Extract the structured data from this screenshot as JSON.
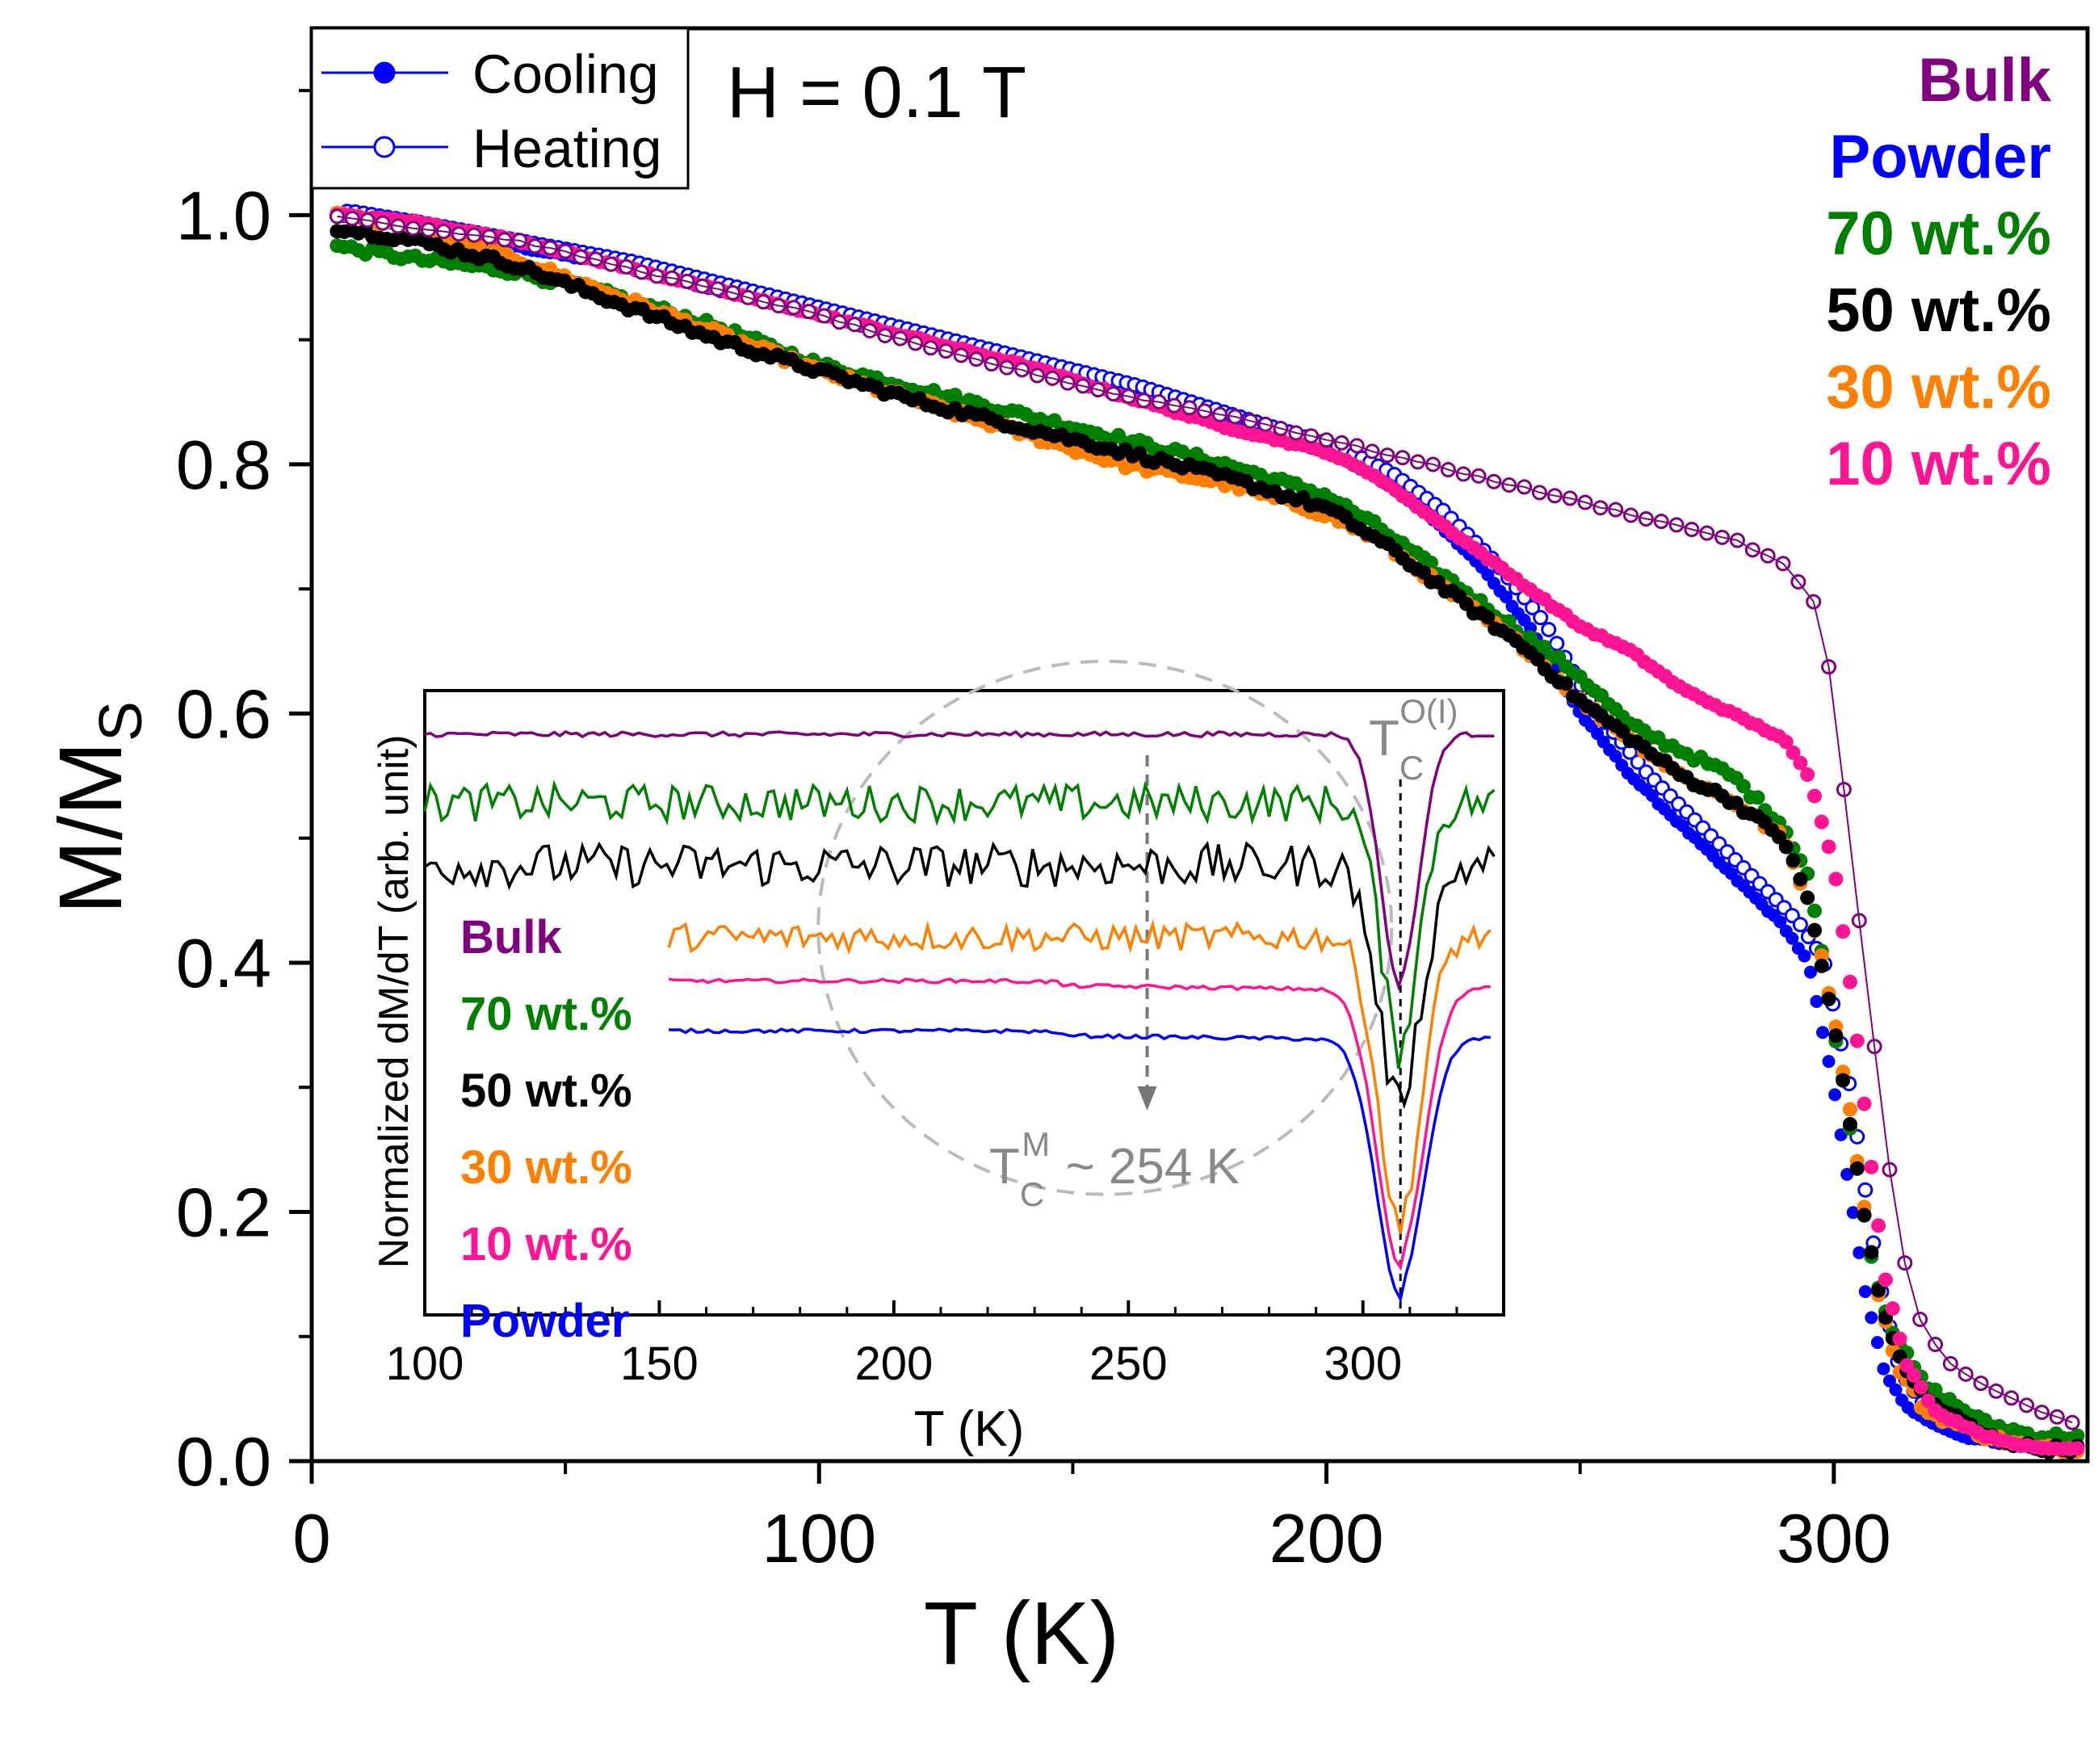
{
  "chart_data": [
    {
      "id": "main",
      "type": "scatter",
      "title": "",
      "annotation": "H = 0.1 T",
      "xlabel": "T (K)",
      "ylabel_main": "M/M",
      "ylabel_sub": "S",
      "xlim": [
        0,
        350
      ],
      "ylim": [
        0.0,
        1.15
      ],
      "xticks": [
        0,
        100,
        200,
        300
      ],
      "xtick_labels": [
        "0",
        "100",
        "200",
        "300"
      ],
      "yticks": [
        0.0,
        0.2,
        0.4,
        0.6,
        0.8,
        1.0
      ],
      "ytick_labels": [
        "0.0",
        "0.2",
        "0.4",
        "0.6",
        "0.8",
        "1.0"
      ],
      "grid": false,
      "legend": {
        "placement": "top-left",
        "entries": [
          {
            "label": "Cooling",
            "marker": "filled-circle",
            "color": "#0000ff"
          },
          {
            "label": "Heating",
            "marker": "open-circle",
            "color": "#0000ff"
          }
        ]
      },
      "series_labels_placement": "top-right",
      "series": [
        {
          "name": "Bulk",
          "color": "#800080",
          "points": [
            [
              5,
              1.0
            ],
            [
              20,
              0.99
            ],
            [
              40,
              0.98
            ],
            [
              60,
              0.96
            ],
            [
              80,
              0.94
            ],
            [
              100,
              0.92
            ],
            [
              120,
              0.895
            ],
            [
              140,
              0.875
            ],
            [
              160,
              0.855
            ],
            [
              180,
              0.84
            ],
            [
              200,
              0.82
            ],
            [
              210,
              0.81
            ],
            [
              220,
              0.8
            ],
            [
              230,
              0.79
            ],
            [
              240,
              0.78
            ],
            [
              250,
              0.77
            ],
            [
              260,
              0.76
            ],
            [
              270,
              0.75
            ],
            [
              280,
              0.74
            ],
            [
              290,
              0.72
            ],
            [
              296,
              0.69
            ],
            [
              300,
              0.62
            ],
            [
              303,
              0.5
            ],
            [
              306,
              0.4
            ],
            [
              309,
              0.3
            ],
            [
              312,
              0.2
            ],
            [
              316,
              0.12
            ],
            [
              322,
              0.08
            ],
            [
              330,
              0.06
            ],
            [
              340,
              0.04
            ],
            [
              348,
              0.03
            ]
          ]
        },
        {
          "name": "Powder",
          "color": "#0000ff",
          "points": [
            [
              5,
              1.0
            ],
            [
              20,
              0.99
            ],
            [
              40,
              0.975
            ],
            [
              60,
              0.96
            ],
            [
              80,
              0.94
            ],
            [
              100,
              0.92
            ],
            [
              120,
              0.9
            ],
            [
              140,
              0.88
            ],
            [
              160,
              0.86
            ],
            [
              180,
              0.835
            ],
            [
              200,
              0.81
            ],
            [
              210,
              0.79
            ],
            [
              220,
              0.76
            ],
            [
              230,
              0.72
            ],
            [
              240,
              0.67
            ],
            [
              250,
              0.6
            ],
            [
              260,
              0.55
            ],
            [
              270,
              0.51
            ],
            [
              280,
              0.47
            ],
            [
              290,
              0.43
            ],
            [
              295,
              0.4
            ],
            [
              300,
              0.3
            ],
            [
              303,
              0.22
            ],
            [
              306,
              0.14
            ],
            [
              310,
              0.07
            ],
            [
              315,
              0.04
            ],
            [
              325,
              0.02
            ],
            [
              340,
              0.01
            ],
            [
              348,
              0.01
            ]
          ]
        },
        {
          "name": "70 wt.%",
          "color": "#008000",
          "points": [
            [
              5,
              0.975
            ],
            [
              20,
              0.965
            ],
            [
              40,
              0.955
            ],
            [
              60,
              0.935
            ],
            [
              80,
              0.91
            ],
            [
              100,
              0.88
            ],
            [
              120,
              0.86
            ],
            [
              140,
              0.84
            ],
            [
              160,
              0.82
            ],
            [
              180,
              0.8
            ],
            [
              200,
              0.775
            ],
            [
              210,
              0.75
            ],
            [
              220,
              0.72
            ],
            [
              230,
              0.69
            ],
            [
              240,
              0.66
            ],
            [
              250,
              0.63
            ],
            [
              260,
              0.59
            ],
            [
              270,
              0.57
            ],
            [
              280,
              0.55
            ],
            [
              290,
              0.51
            ],
            [
              295,
              0.47
            ],
            [
              300,
              0.35
            ],
            [
              304,
              0.25
            ],
            [
              308,
              0.15
            ],
            [
              312,
              0.1
            ],
            [
              318,
              0.06
            ],
            [
              330,
              0.03
            ],
            [
              340,
              0.02
            ],
            [
              348,
              0.02
            ]
          ]
        },
        {
          "name": "50 wt.%",
          "color": "#000000",
          "points": [
            [
              5,
              0.99
            ],
            [
              20,
              0.98
            ],
            [
              40,
              0.96
            ],
            [
              60,
              0.93
            ],
            [
              80,
              0.9
            ],
            [
              100,
              0.875
            ],
            [
              120,
              0.85
            ],
            [
              140,
              0.83
            ],
            [
              160,
              0.81
            ],
            [
              180,
              0.79
            ],
            [
              200,
              0.765
            ],
            [
              210,
              0.74
            ],
            [
              220,
              0.71
            ],
            [
              230,
              0.68
            ],
            [
              240,
              0.65
            ],
            [
              250,
              0.61
            ],
            [
              260,
              0.58
            ],
            [
              270,
              0.55
            ],
            [
              280,
              0.53
            ],
            [
              290,
              0.5
            ],
            [
              295,
              0.45
            ],
            [
              300,
              0.35
            ],
            [
              304,
              0.25
            ],
            [
              308,
              0.15
            ],
            [
              312,
              0.09
            ],
            [
              318,
              0.05
            ],
            [
              330,
              0.02
            ],
            [
              340,
              0.01
            ],
            [
              348,
              0.01
            ]
          ]
        },
        {
          "name": "30 wt.%",
          "color": "#ff8000",
          "points": [
            [
              5,
              1.0
            ],
            [
              20,
              0.99
            ],
            [
              40,
              0.965
            ],
            [
              60,
              0.935
            ],
            [
              80,
              0.905
            ],
            [
              100,
              0.875
            ],
            [
              120,
              0.85
            ],
            [
              140,
              0.825
            ],
            [
              160,
              0.8
            ],
            [
              180,
              0.785
            ],
            [
              200,
              0.76
            ],
            [
              210,
              0.74
            ],
            [
              220,
              0.71
            ],
            [
              230,
              0.68
            ],
            [
              240,
              0.65
            ],
            [
              250,
              0.61
            ],
            [
              260,
              0.58
            ],
            [
              270,
              0.55
            ],
            [
              280,
              0.53
            ],
            [
              290,
              0.5
            ],
            [
              295,
              0.45
            ],
            [
              300,
              0.36
            ],
            [
              304,
              0.26
            ],
            [
              308,
              0.15
            ],
            [
              312,
              0.08
            ],
            [
              318,
              0.04
            ],
            [
              330,
              0.02
            ],
            [
              340,
              0.01
            ],
            [
              348,
              0.01
            ]
          ]
        },
        {
          "name": "10 wt.%",
          "color": "#ff1493",
          "points": [
            [
              5,
              1.0
            ],
            [
              20,
              0.995
            ],
            [
              40,
              0.98
            ],
            [
              60,
              0.96
            ],
            [
              80,
              0.94
            ],
            [
              100,
              0.92
            ],
            [
              120,
              0.9
            ],
            [
              140,
              0.88
            ],
            [
              160,
              0.855
            ],
            [
              180,
              0.83
            ],
            [
              200,
              0.81
            ],
            [
              210,
              0.79
            ],
            [
              220,
              0.76
            ],
            [
              230,
              0.73
            ],
            [
              240,
              0.7
            ],
            [
              250,
              0.67
            ],
            [
              260,
              0.65
            ],
            [
              270,
              0.62
            ],
            [
              280,
              0.6
            ],
            [
              290,
              0.58
            ],
            [
              295,
              0.55
            ],
            [
              300,
              0.48
            ],
            [
              304,
              0.36
            ],
            [
              307,
              0.25
            ],
            [
              310,
              0.15
            ],
            [
              314,
              0.08
            ],
            [
              320,
              0.04
            ],
            [
              330,
              0.02
            ],
            [
              340,
              0.01
            ],
            [
              348,
              0.01
            ]
          ]
        }
      ]
    },
    {
      "id": "inset",
      "type": "line",
      "xlabel": "T (K)",
      "ylabel": "Normalized dM/dT (arb. unit)",
      "xlim": [
        100,
        330
      ],
      "ylim": [
        0,
        1
      ],
      "xticks": [
        100,
        150,
        200,
        250,
        300
      ],
      "xtick_labels": [
        "100",
        "150",
        "200",
        "250",
        "300"
      ],
      "grid": false,
      "annotations": {
        "tc_oi_main": "T",
        "tc_oi_sub": "C",
        "tc_oi_sup": "O(I)",
        "tc_oi_temperature": 308,
        "tc_m_main": "T",
        "tc_m_sub": "C",
        "tc_m_sup": "M",
        "tc_m_rest": " ~ 254 K",
        "tc_m_temperature": 254
      },
      "legend_placement": "left",
      "series": [
        {
          "name": "Bulk",
          "color": "#800080",
          "start": 100,
          "baseline": 0.93,
          "noise": 0.004,
          "dip_depth": 0.38,
          "dip_width": 4.0
        },
        {
          "name": "70 wt.%",
          "color": "#008000",
          "start": 100,
          "baseline": 0.82,
          "noise": 0.03,
          "dip_depth": 0.37,
          "dip_width": 4.0
        },
        {
          "name": "50 wt.%",
          "color": "#000000",
          "start": 100,
          "baseline": 0.72,
          "noise": 0.035,
          "dip_depth": 0.36,
          "dip_width": 4.5
        },
        {
          "name": "30 wt.%",
          "color": "#ff8000",
          "start": 152,
          "baseline": 0.605,
          "noise": 0.022,
          "dip_depth": 0.44,
          "dip_width": 4.5
        },
        {
          "name": "10 wt.%",
          "color": "#ff1493",
          "start": 152,
          "baseline": 0.535,
          "noise": 0.003,
          "dip_depth": 0.42,
          "dip_width": 5.0
        },
        {
          "name": "Powder",
          "color": "#0000ff",
          "start": 152,
          "baseline": 0.455,
          "noise": 0.003,
          "dip_depth": 0.39,
          "dip_width": 5.0
        }
      ]
    }
  ]
}
